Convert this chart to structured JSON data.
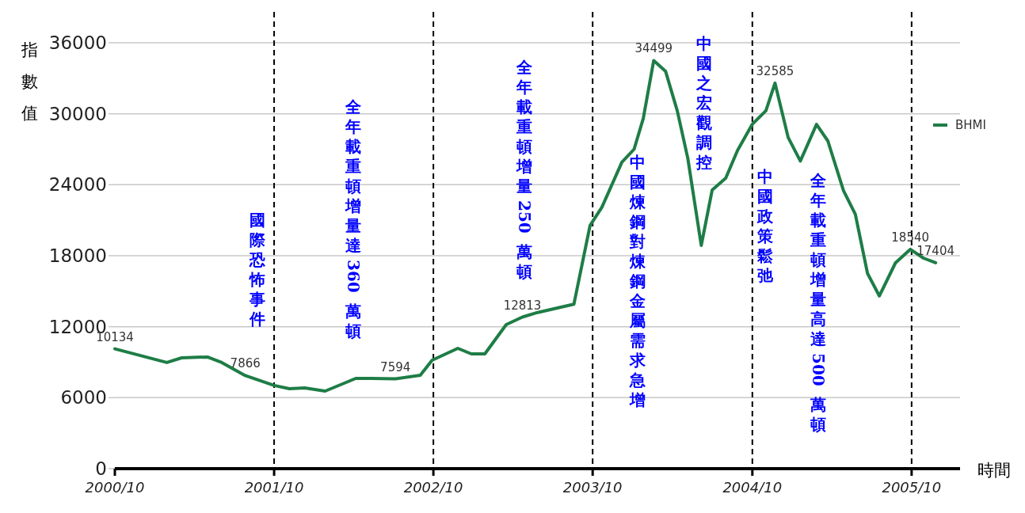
{
  "chart_data": {
    "type": "line",
    "xlabel": "時間",
    "ylabel": "指數值",
    "x": [
      "2000-10-01",
      "2001-01-28",
      "2001-03-03",
      "2001-05-01",
      "2001-06-03",
      "2001-07-27",
      "2001-10-01",
      "2001-11-05",
      "2001-12-10",
      "2002-01-26",
      "2002-04-06",
      "2002-05-12",
      "2002-07-06",
      "2002-09-01",
      "2002-09-28",
      "2002-11-26",
      "2002-12-27",
      "2003-01-27",
      "2003-03-17",
      "2003-04-23",
      "2003-05-28",
      "2003-08-19",
      "2003-09-25",
      "2003-10-22",
      "2003-12-07",
      "2004-01-04",
      "2004-01-25",
      "2004-02-18",
      "2004-03-16",
      "2004-04-12",
      "2004-05-06",
      "2004-06-06",
      "2004-07-01",
      "2004-08-01",
      "2004-08-28",
      "2004-10-01",
      "2004-11-01",
      "2004-11-22",
      "2004-12-22",
      "2005-01-19",
      "2005-02-25",
      "2005-03-23",
      "2005-04-28",
      "2005-05-25",
      "2005-06-22",
      "2005-07-19",
      "2005-08-25",
      "2005-09-28",
      "2005-10-28",
      "2005-11-25"
    ],
    "series": [
      {
        "name": "BHMI",
        "color": "#1e7d46",
        "values": [
          10134,
          8970,
          9370,
          9440,
          8970,
          7866,
          7030,
          6760,
          6830,
          6560,
          7630,
          7630,
          7594,
          7900,
          9170,
          10170,
          9700,
          9700,
          12180,
          12813,
          13200,
          13900,
          20550,
          22090,
          25900,
          27000,
          29600,
          34499,
          33600,
          30250,
          26240,
          18870,
          23560,
          24560,
          26900,
          29120,
          30250,
          32585,
          28000,
          26000,
          29100,
          27700,
          23500,
          21500,
          16500,
          14600,
          17400,
          18540,
          17800,
          17404
        ],
        "value_labels": [
          "10134",
          null,
          null,
          null,
          null,
          "7866",
          null,
          null,
          null,
          null,
          null,
          null,
          "7594",
          null,
          null,
          null,
          null,
          null,
          null,
          "12813",
          null,
          null,
          null,
          null,
          null,
          null,
          null,
          "34499",
          null,
          null,
          null,
          null,
          null,
          null,
          null,
          null,
          null,
          "32585",
          null,
          null,
          null,
          null,
          null,
          null,
          null,
          null,
          null,
          "18540",
          null,
          "17404"
        ]
      }
    ],
    "xlim": [
      "2000-10-01",
      "2006-01-20"
    ],
    "ylim": [
      0,
      36000
    ],
    "xticks": [
      {
        "value": "2000-10",
        "label": "2000/10"
      },
      {
        "value": "2001-10",
        "label": "2001/10"
      },
      {
        "value": "2002-10",
        "label": "2002/10"
      },
      {
        "value": "2003-10",
        "label": "2003/10"
      },
      {
        "value": "2004-10",
        "label": "2004/10"
      },
      {
        "value": "2005-10",
        "label": "2005/10"
      }
    ],
    "yticks": [
      0,
      6000,
      12000,
      18000,
      24000,
      30000,
      36000
    ],
    "grid": "y",
    "legend": "right",
    "marker": "none",
    "line_style": "solid",
    "ref_lines": [
      {
        "axis": "x",
        "value": "2001-10",
        "color": "#000000",
        "line_style": "dashed"
      },
      {
        "axis": "x",
        "value": "2002-10",
        "color": "#000000",
        "line_style": "dashed"
      },
      {
        "axis": "x",
        "value": "2003-10",
        "color": "#000000",
        "line_style": "dashed"
      },
      {
        "axis": "x",
        "value": "2004-10",
        "color": "#000000",
        "line_style": "dashed"
      },
      {
        "axis": "x",
        "value": "2005-10",
        "color": "#000000",
        "line_style": "dashed"
      }
    ],
    "annotations": [
      "國際恐怖事件",
      "全年載重頓增量達 360 萬頓",
      "全年載重頓增量 250 萬頓",
      "中國煉鋼對煉鋼金屬需求急增",
      "中國之宏觀調控",
      "中國政策鬆弛",
      "全年載重頓增量高達 500 萬頓"
    ]
  }
}
